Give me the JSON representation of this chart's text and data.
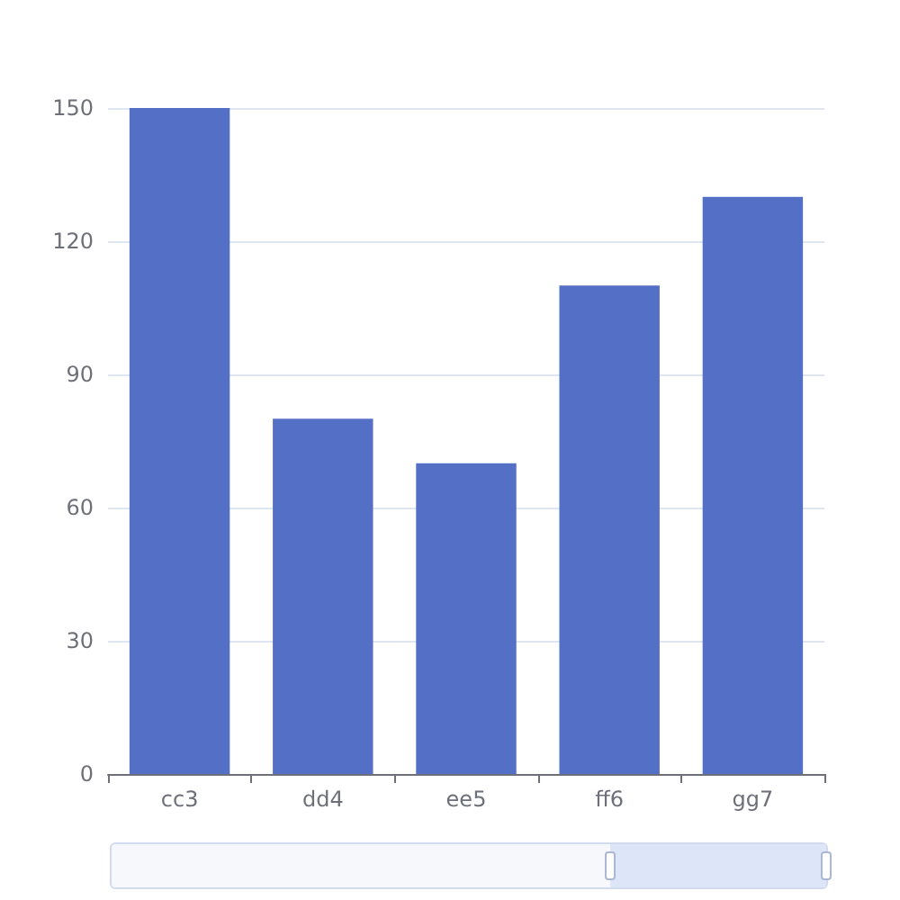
{
  "chart_data": {
    "type": "bar",
    "categories": [
      "cc3",
      "dd4",
      "ee5",
      "ff6",
      "gg7"
    ],
    "values": [
      150,
      80,
      70,
      110,
      130
    ],
    "color": "#5470c6",
    "ylim": [
      0,
      150
    ],
    "yticks": [
      0,
      30,
      60,
      90,
      120,
      150
    ],
    "grid": "y"
  }
}
